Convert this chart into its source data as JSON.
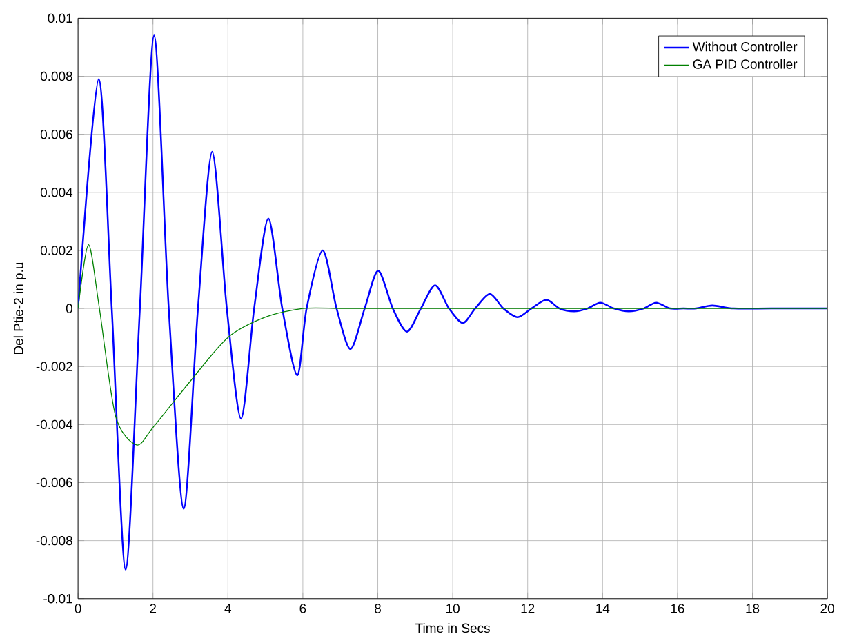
{
  "chart_data": {
    "type": "line",
    "xlabel": "Time in Secs",
    "ylabel": "Del Ptie-2 in p.u",
    "xlim": [
      0,
      20
    ],
    "ylim": [
      -0.01,
      0.01
    ],
    "xticks": [
      0,
      2,
      4,
      6,
      8,
      10,
      12,
      14,
      16,
      18,
      20
    ],
    "yticks": [
      -0.01,
      -0.008,
      -0.006,
      -0.004,
      -0.002,
      0,
      0.002,
      0.004,
      0.006,
      0.008,
      0.01
    ],
    "grid": true,
    "legend": "top right",
    "series": [
      {
        "name": "Without Controller",
        "color": "#0000ff",
        "x": [
          0,
          0.55,
          0.9,
          1.27,
          1.65,
          2.03,
          2.42,
          2.82,
          3.2,
          3.58,
          3.97,
          4.35,
          4.7,
          5.08,
          5.45,
          5.85,
          6.1,
          6.53,
          6.9,
          7.27,
          7.65,
          8.01,
          8.4,
          8.78,
          9.15,
          9.53,
          9.9,
          10.27,
          10.6,
          10.99,
          11.35,
          11.73,
          12.1,
          12.5,
          12.85,
          13.24,
          13.6,
          13.94,
          14.3,
          14.7,
          15.1,
          15.43,
          15.8,
          16.16,
          16.5,
          16.93,
          17.5,
          18.5,
          20
        ],
        "values": [
          0,
          0.0079,
          0,
          -0.009,
          0,
          0.0094,
          0,
          -0.0069,
          0,
          0.0054,
          0,
          -0.0038,
          0,
          0.0031,
          0,
          -0.0023,
          0,
          0.002,
          0,
          -0.0014,
          0,
          0.0013,
          0,
          -0.0008,
          0,
          0.0008,
          0,
          -0.0005,
          0,
          0.0005,
          0,
          -0.0003,
          0,
          0.0003,
          0,
          -0.0001,
          0,
          0.0002,
          0,
          -0.0001,
          0,
          0.0002,
          0,
          0,
          0,
          0.0001,
          0,
          0,
          0
        ]
      },
      {
        "name": "GA PID Controller",
        "color": "#008000",
        "x": [
          0,
          0.28,
          0.57,
          1.0,
          1.56,
          2,
          3,
          4,
          5,
          6,
          7,
          8,
          10,
          14,
          20
        ],
        "values": [
          0,
          0.0022,
          0,
          -0.0037,
          -0.0047,
          -0.0041,
          -0.0025,
          -0.001,
          -0.0003,
          0,
          0,
          0,
          0,
          0,
          0
        ]
      }
    ]
  }
}
